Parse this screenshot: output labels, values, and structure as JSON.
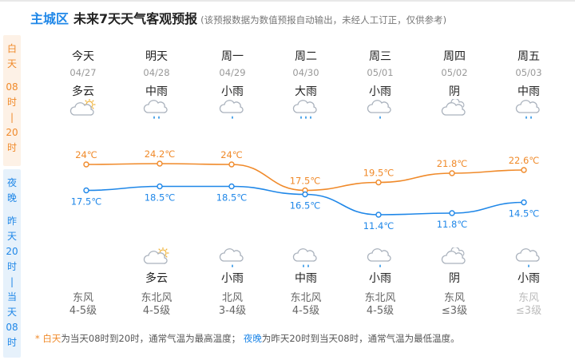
{
  "header": {
    "city": "主城区",
    "title": "未来7天天气客观预报",
    "note": "(该预报数据为数值预报自动输出，未经人工订正，仅供参考)"
  },
  "side": {
    "day": [
      "白",
      "天",
      "08",
      "时",
      "|",
      "20",
      "时"
    ],
    "night": [
      "夜",
      "晚",
      "昨",
      "天",
      "20",
      "时",
      "|",
      "当",
      "天",
      "08",
      "时"
    ]
  },
  "days": [
    {
      "label": "今天",
      "date": "04/27",
      "day_weather": "多云",
      "day_icon": "partly-cloudy-icon",
      "night_weather": "",
      "night_icon": "",
      "wind_dir": "东风",
      "wind_level": "4-5级"
    },
    {
      "label": "明天",
      "date": "04/28",
      "day_weather": "中雨",
      "day_icon": "moderate-rain-icon",
      "night_weather": "多云",
      "night_icon": "partly-cloudy-icon",
      "wind_dir": "东北风",
      "wind_level": "4-5级"
    },
    {
      "label": "周一",
      "date": "04/29",
      "day_weather": "小雨",
      "day_icon": "light-rain-icon",
      "night_weather": "小雨",
      "night_icon": "light-rain-icon",
      "wind_dir": "北风",
      "wind_level": "3-4级"
    },
    {
      "label": "周二",
      "date": "04/30",
      "day_weather": "大雨",
      "day_icon": "heavy-rain-icon",
      "night_weather": "中雨",
      "night_icon": "moderate-rain-icon",
      "wind_dir": "东北风",
      "wind_level": "4-5级"
    },
    {
      "label": "周三",
      "date": "05/01",
      "day_weather": "小雨",
      "day_icon": "light-rain-icon",
      "night_weather": "小雨",
      "night_icon": "light-rain-icon",
      "wind_dir": "东北风",
      "wind_level": "4-5级"
    },
    {
      "label": "周四",
      "date": "05/02",
      "day_weather": "阴",
      "day_icon": "overcast-icon",
      "night_weather": "阴",
      "night_icon": "overcast-icon",
      "wind_dir": "东风",
      "wind_level": "≤3级"
    },
    {
      "label": "周五",
      "date": "05/03",
      "day_weather": "中雨",
      "day_icon": "moderate-rain-icon",
      "night_weather": "小雨",
      "night_icon": "light-rain-icon",
      "wind_dir": "东风",
      "wind_level": "≤3级"
    }
  ],
  "chart_data": {
    "type": "line",
    "categories": [
      "今天",
      "明天",
      "周一",
      "周二",
      "周三",
      "周四",
      "周五"
    ],
    "series": [
      {
        "values": [
          24,
          24.2,
          24,
          17.5,
          19.5,
          21.8,
          22.6
        ],
        "labels": [
          "24℃",
          "24.2℃",
          "24℃",
          "17.5℃",
          "19.5℃",
          "21.8℃",
          "22.6℃"
        ],
        "color": "#f08a2a"
      },
      {
        "values": [
          17.5,
          18.5,
          18.5,
          16.5,
          11.4,
          11.8,
          14.5
        ],
        "labels": [
          "17.5℃",
          "18.5℃",
          "18.5℃",
          "16.5℃",
          "11.4℃",
          "11.8℃",
          "14.5℃"
        ],
        "color": "#1f87e8"
      }
    ]
  },
  "footer": {
    "star": "*",
    "day_word": "白天",
    "day_desc": "为当天08时到20时，通常气温为最高温度；",
    "night_word": "夜晚",
    "night_desc": "为昨天20时到当天08时，通常气温为最低温度。"
  },
  "colors": {
    "day": "#f08a2a",
    "night": "#1f87e8",
    "icon": "#aab2bd",
    "rain": "#3a9be8"
  }
}
